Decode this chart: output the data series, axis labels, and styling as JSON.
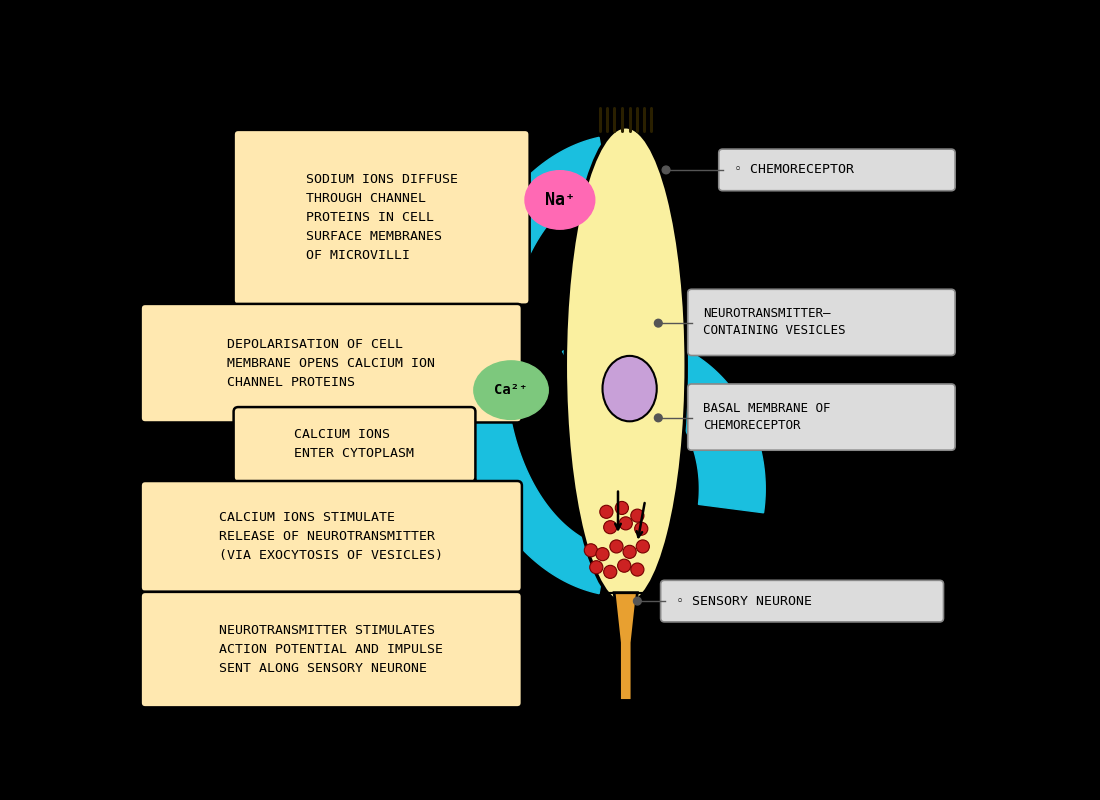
{
  "bg_color": "#000000",
  "cell_body_color": "#FAF0A0",
  "cell_body_outline": "#000000",
  "nucleus_color": "#C8A0D8",
  "cyan_color": "#1ABFDF",
  "na_circle_color": "#FF69B4",
  "ca_circle_color": "#7DC87D",
  "vesicle_color": "#CC2222",
  "axon_color": "#E8A030",
  "box_fill": "#FFE8B0",
  "box_edge": "#000000",
  "label_box_fill": "#DCDCDC",
  "label_box_edge": "#888888",
  "text_color": "#000000",
  "box1_text": "SODIUM IONS DIFFUSE\nTHROUGH CHANNEL\nPROTEINS IN CELL\nSURFACE MEMBRANES\nOF MICROVILLI",
  "box2_text": "DEPOLARISATION OF CELL\nMEMBRANE OPENS CALCIUM ION\nCHANNEL PROTEINS",
  "box3_text": "CALCIUM IONS\nENTER CYTOPLASM",
  "box4_text": "CALCIUM IONS STIMULATE\nRELEASE OF NEUROTRANSMITTER\n(VIA EXOCYTOSIS OF VESICLES)",
  "box5_text": "NEUROTRANSMITTER STIMULATES\nACTION POTENTIAL AND IMPULSE\nSENT ALONG SENSORY NEURONE",
  "label_chemoreceptor": "◦ CHEMORECEPTOR",
  "label_vesicles": "NEUROTRANSMITTER–\nCONTAINING VESICLES",
  "label_basal": "BASAL MEMBRANE OF\nCHEMORECEPTOR",
  "label_neurone": "◦ SENSORY NEURONE",
  "na_text": "Na⁺",
  "ca_text": "Ca²⁺"
}
